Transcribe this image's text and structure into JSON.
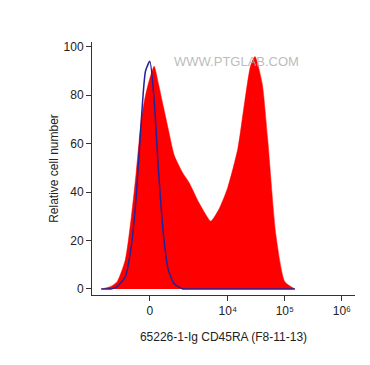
{
  "chart_data": {
    "type": "area",
    "x_label": "65226-1-Ig CD45RA (F8-11-13)",
    "y_label": "Relative cell number",
    "annotations": [
      "WWW.PTGLAB.COM"
    ],
    "x": [
      -3000,
      -2000,
      -1500,
      -1000,
      -700,
      -500,
      -300,
      -150,
      0,
      150,
      300,
      500,
      700,
      1000,
      1500,
      2000,
      3000,
      4000,
      5000,
      7000,
      10000,
      15000,
      20000,
      25000,
      30000,
      40000,
      50000,
      70000,
      100000,
      150000
    ],
    "series": [
      {
        "color": "#ff0000",
        "type": "area",
        "values": [
          0,
          1,
          3,
          12,
          30,
          48,
          70,
          80,
          87,
          92,
          85,
          75,
          66,
          55,
          48,
          44,
          36,
          31,
          28,
          33,
          42,
          58,
          78,
          92,
          96,
          85,
          62,
          22,
          3,
          0
        ]
      },
      {
        "color": "#22229a",
        "type": "line",
        "values": [
          0,
          0,
          1,
          5,
          18,
          38,
          70,
          90,
          94,
          78,
          50,
          22,
          8,
          2,
          0,
          0,
          0,
          0,
          0,
          0,
          0,
          0,
          0,
          0,
          0,
          0,
          0,
          0,
          0,
          0
        ]
      }
    ],
    "xlim": [
      -4400,
      1700000
    ],
    "xticks": [
      0,
      {
        "value": 10000,
        "label": "10⁴"
      },
      {
        "value": 100000,
        "label": "10⁵"
      },
      {
        "value": 1000000,
        "label": "10⁶"
      }
    ],
    "ylim": [
      -2.5,
      102
    ],
    "yticks": [
      0,
      20,
      40,
      60,
      80,
      100
    ],
    "grid": false
  }
}
